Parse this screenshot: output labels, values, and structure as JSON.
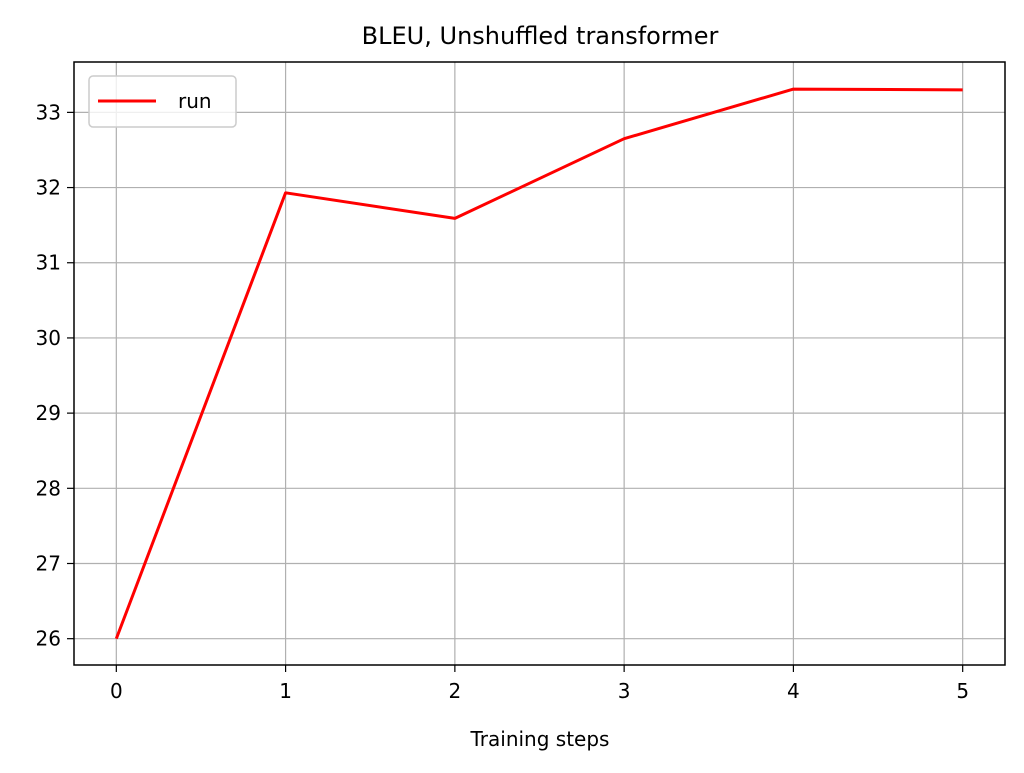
{
  "chart_data": {
    "type": "line",
    "title": "BLEU, Unshuffled transformer",
    "xlabel": "Training steps",
    "ylabel": "",
    "x": [
      0,
      1,
      2,
      3,
      4,
      5
    ],
    "series": [
      {
        "name": "run",
        "color": "#ff0000",
        "values": [
          26.0,
          31.93,
          31.59,
          32.65,
          33.31,
          33.3
        ]
      }
    ],
    "xlim": [
      -0.25,
      5.25
    ],
    "ylim": [
      25.65,
      33.67
    ],
    "xticks": [
      0,
      1,
      2,
      3,
      4,
      5
    ],
    "yticks": [
      26,
      27,
      28,
      29,
      30,
      31,
      32,
      33
    ],
    "grid": true,
    "legend_position": "upper-left"
  }
}
